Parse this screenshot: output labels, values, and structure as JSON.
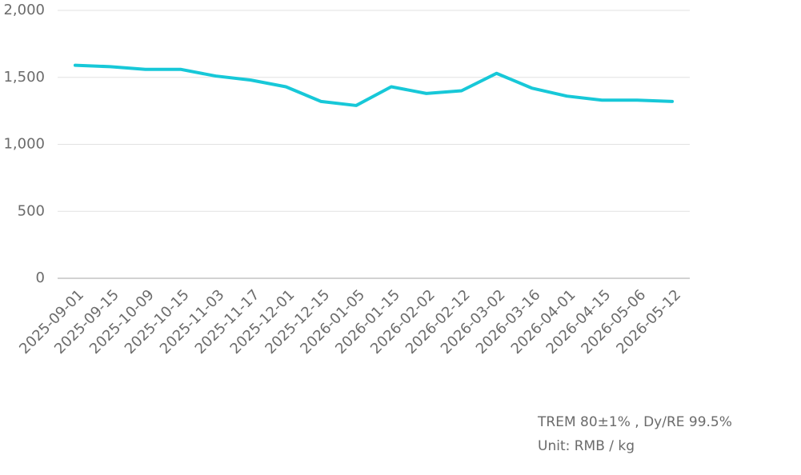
{
  "chart_data": {
    "type": "line",
    "categories": [
      "2025-09-01",
      "2025-09-15",
      "2025-10-09",
      "2025-10-15",
      "2025-11-03",
      "2025-11-17",
      "2025-12-01",
      "2025-12-15",
      "2026-01-05",
      "2026-01-15",
      "2026-02-02",
      "2026-02-12",
      "2026-03-02",
      "2026-03-16",
      "2026-04-01",
      "2026-04-15",
      "2026-05-06",
      "2026-05-12"
    ],
    "values": [
      1590,
      1580,
      1560,
      1560,
      1510,
      1480,
      1430,
      1320,
      1290,
      1430,
      1380,
      1400,
      1530,
      1420,
      1360,
      1330,
      1330,
      1320
    ],
    "color": "#17c8d8",
    "ylim": [
      0,
      2000
    ],
    "yticks": [
      0,
      500,
      {
        "value": 1000,
        "label": "1,000"
      },
      {
        "value": 1500,
        "label": "1,500"
      },
      {
        "value": 2000,
        "label": "2,000"
      }
    ],
    "grid": true,
    "annotations": [
      "TREM 80±1% , Dy/RE 99.5%",
      "Unit: RMB / kg"
    ]
  }
}
